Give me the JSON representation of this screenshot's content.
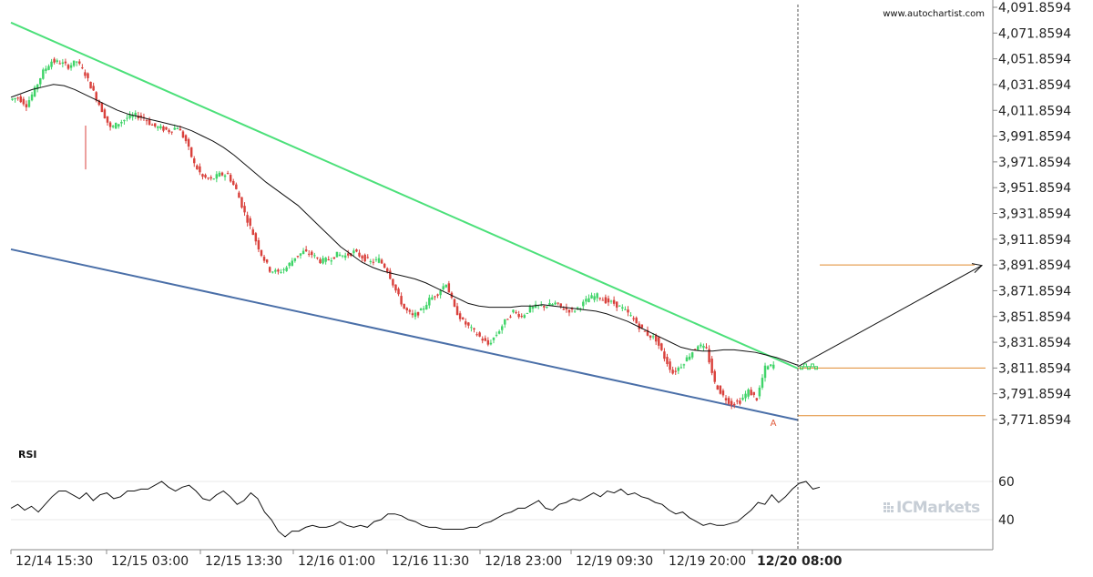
{
  "watermark": "www.autochartist.com",
  "brand": "ICMarkets",
  "chart_data": [
    {
      "type": "candlestick",
      "title": "",
      "y_tick_labels": [
        "4,091.8594",
        "4,071.8594",
        "4,051.8594",
        "4,031.8594",
        "4,011.8594",
        "3,991.8594",
        "3,971.8594",
        "3,951.8594",
        "3,931.8594",
        "3,911.8594",
        "3,891.8594",
        "3,871.8594",
        "3,851.8594",
        "3,831.8594",
        "3,811.8594",
        "3,791.8594",
        "3,771.8594"
      ],
      "ylim": [
        3766,
        4094
      ],
      "x_tick_labels": [
        {
          "label": "12/14 15:30",
          "bold": false
        },
        {
          "label": "12/15 03:00",
          "bold": false
        },
        {
          "label": "12/15 13:30",
          "bold": false
        },
        {
          "label": "12/16 01:00",
          "bold": false
        },
        {
          "label": "12/16 11:30",
          "bold": false
        },
        {
          "label": "12/18 23:00",
          "bold": false
        },
        {
          "label": "12/19 09:30",
          "bold": false
        },
        {
          "label": "12/19 20:00",
          "bold": false
        },
        {
          "label": "12/20 08:00",
          "bold": true
        }
      ],
      "price_path": [
        4020,
        4022,
        4016,
        4028,
        4042,
        4050,
        4049,
        4046,
        4050,
        4040,
        4026,
        4012,
        3998,
        4002,
        4006,
        4008,
        4006,
        4000,
        3998,
        3996,
        3999,
        3988,
        3970,
        3960,
        3958,
        3962,
        3962,
        3950,
        3932,
        3916,
        3900,
        3888,
        3886,
        3890,
        3898,
        3902,
        3900,
        3895,
        3896,
        3900,
        3899,
        3902,
        3898,
        3894,
        3896,
        3888,
        3872,
        3858,
        3852,
        3856,
        3865,
        3870,
        3878,
        3858,
        3848,
        3842,
        3836,
        3830,
        3838,
        3848,
        3856,
        3852,
        3858,
        3860,
        3860,
        3862,
        3858,
        3856,
        3860,
        3866,
        3868,
        3864,
        3862,
        3858,
        3852,
        3844,
        3838,
        3834,
        3820,
        3808,
        3814,
        3822,
        3830,
        3826,
        3800,
        3790,
        3784,
        3786,
        3794,
        3788,
        3812,
        3814
      ],
      "ma_path": [
        4022,
        4025,
        4028,
        4030,
        4032,
        4031,
        4028,
        4024,
        4020,
        4016,
        4012,
        4009,
        4007,
        4005,
        4003,
        4001,
        3999,
        3996,
        3992,
        3988,
        3983,
        3977,
        3970,
        3963,
        3956,
        3950,
        3944,
        3938,
        3930,
        3922,
        3914,
        3906,
        3900,
        3894,
        3890,
        3887,
        3885,
        3883,
        3881,
        3878,
        3874,
        3870,
        3866,
        3862,
        3860,
        3859,
        3859,
        3859,
        3860,
        3860,
        3861,
        3860,
        3859,
        3858,
        3857,
        3856,
        3854,
        3851,
        3848,
        3844,
        3840,
        3836,
        3832,
        3828,
        3826,
        3825,
        3825,
        3826,
        3826,
        3825,
        3824,
        3822,
        3820,
        3817,
        3814
      ],
      "trendlines": [
        {
          "role": "resistance",
          "color": "#4ce07a",
          "from": [
            0,
            4080
          ],
          "to": [
            1,
            3811.5
          ]
        },
        {
          "role": "support",
          "color": "#4a6fa8",
          "from": [
            0,
            3904
          ],
          "to": [
            1,
            3771.5
          ]
        }
      ],
      "target_levels": [
        3891.8594,
        3811.8594,
        3774.8594
      ],
      "projection": {
        "from": 3813,
        "to": 3891.5
      },
      "pattern_point_label": "A"
    },
    {
      "type": "line",
      "title": "RSI",
      "y_tick_labels": [
        "60",
        "40"
      ],
      "ylim": [
        26,
        70
      ],
      "values": [
        46,
        48,
        45,
        47,
        44,
        48,
        52,
        55,
        55,
        53,
        51,
        54,
        50,
        53,
        54,
        51,
        52,
        55,
        55,
        56,
        56,
        58,
        60,
        57,
        55,
        57,
        58,
        55,
        51,
        50,
        53,
        55,
        52,
        48,
        50,
        54,
        51,
        44,
        40,
        34,
        31,
        34,
        34,
        36,
        37,
        36,
        36,
        37,
        39,
        37,
        36,
        37,
        36,
        39,
        40,
        43,
        43,
        42,
        40,
        39,
        37,
        36,
        36,
        35,
        35,
        35,
        35,
        36,
        36,
        38,
        39,
        41,
        43,
        44,
        46,
        46,
        48,
        50,
        46,
        45,
        48,
        49,
        51,
        50,
        52,
        54,
        52,
        55,
        54,
        56,
        53,
        54,
        52,
        51,
        49,
        48,
        45,
        43,
        44,
        41,
        39,
        37,
        38,
        37,
        37,
        38,
        39,
        42,
        45,
        49,
        48,
        53,
        49,
        52,
        56,
        59,
        60,
        56,
        57
      ],
      "reference_lines": [
        60,
        40
      ]
    }
  ]
}
